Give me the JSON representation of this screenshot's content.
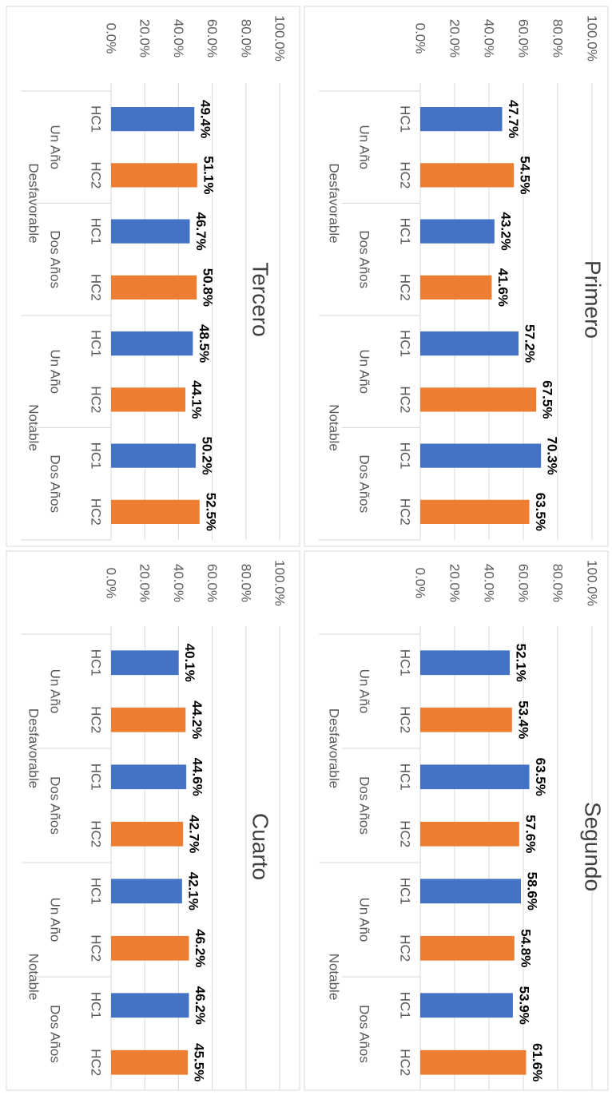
{
  "colors": {
    "hc1": "#4472c4",
    "hc2": "#ed7d31"
  },
  "y_ticks": [
    "0.0%",
    "20.0%",
    "40.0%",
    "60.0%",
    "80.0%",
    "100.0%"
  ],
  "chart_data": [
    {
      "type": "bar",
      "title": "Primero",
      "orientation": "rotated-90-clockwise",
      "categories": [
        [
          "HC1",
          "Un Año",
          "Desfavorable"
        ],
        [
          "HC2",
          "Un Año",
          "Desfavorable"
        ],
        [
          "HC1",
          "Dos Años",
          "Desfavorable"
        ],
        [
          "HC2",
          "Dos Años",
          "Desfavorable"
        ],
        [
          "HC1",
          "Un Año",
          "Notable"
        ],
        [
          "HC2",
          "Un Año",
          "Notable"
        ],
        [
          "HC1",
          "Dos Años",
          "Notable"
        ],
        [
          "HC2",
          "Dos Años",
          "Notable"
        ]
      ],
      "values": [
        47.7,
        54.5,
        43.2,
        41.6,
        57.2,
        67.5,
        70.3,
        63.5
      ],
      "labels": [
        "47.7%",
        "54.5%",
        "43.2%",
        "41.6%",
        "57.2%",
        "67.5%",
        "70.3%",
        "63.5%"
      ],
      "ylim": [
        0,
        100
      ],
      "grid": true
    },
    {
      "type": "bar",
      "title": "Segundo",
      "orientation": "rotated-90-clockwise",
      "categories": [
        [
          "HC1",
          "Un Año",
          "Desfavorable"
        ],
        [
          "HC2",
          "Un Año",
          "Desfavorable"
        ],
        [
          "HC1",
          "Dos Años",
          "Desfavorable"
        ],
        [
          "HC2",
          "Dos Años",
          "Desfavorable"
        ],
        [
          "HC1",
          "Un Año",
          "Notable"
        ],
        [
          "HC2",
          "Un Año",
          "Notable"
        ],
        [
          "HC1",
          "Dos Años",
          "Notable"
        ],
        [
          "HC2",
          "Dos Años",
          "Notable"
        ]
      ],
      "values": [
        52.1,
        53.4,
        63.5,
        57.6,
        58.6,
        54.8,
        53.9,
        61.6
      ],
      "labels": [
        "52.1%",
        "53.4%",
        "63.5%",
        "57.6%",
        "58.6%",
        "54.8%",
        "53.9%",
        "61.6%"
      ],
      "ylim": [
        0,
        100
      ],
      "grid": true
    },
    {
      "type": "bar",
      "title": "Tercero",
      "orientation": "rotated-90-clockwise",
      "categories": [
        [
          "HC1",
          "Un Año",
          "Desfavorable"
        ],
        [
          "HC2",
          "Un Año",
          "Desfavorable"
        ],
        [
          "HC1",
          "Dos Años",
          "Desfavorable"
        ],
        [
          "HC2",
          "Dos Años",
          "Desfavorable"
        ],
        [
          "HC1",
          "Un Año",
          "Notable"
        ],
        [
          "HC2",
          "Un Año",
          "Notable"
        ],
        [
          "HC1",
          "Dos Años",
          "Notable"
        ],
        [
          "HC2",
          "Dos Años",
          "Notable"
        ]
      ],
      "values": [
        49.4,
        51.1,
        46.7,
        50.8,
        48.5,
        44.1,
        50.2,
        52.5
      ],
      "labels": [
        "49.4%",
        "51.1%",
        "46.7%",
        "50.8%",
        "48.5%",
        "44.1%",
        "50.2%",
        "52.5%"
      ],
      "ylim": [
        0,
        100
      ],
      "grid": true
    },
    {
      "type": "bar",
      "title": "Cuarto",
      "orientation": "rotated-90-clockwise",
      "categories": [
        [
          "HC1",
          "Un Año",
          "Desfavorable"
        ],
        [
          "HC2",
          "Un Año",
          "Desfavorable"
        ],
        [
          "HC1",
          "Dos Años",
          "Desfavorable"
        ],
        [
          "HC2",
          "Dos Años",
          "Desfavorable"
        ],
        [
          "HC1",
          "Un Año",
          "Notable"
        ],
        [
          "HC2",
          "Un Año",
          "Notable"
        ],
        [
          "HC1",
          "Dos Años",
          "Notable"
        ],
        [
          "HC2",
          "Dos Años",
          "Notable"
        ]
      ],
      "values": [
        40.1,
        44.2,
        44.6,
        42.7,
        42.1,
        46.2,
        46.2,
        45.5
      ],
      "labels": [
        "40.1%",
        "44.2%",
        "44.6%",
        "42.7%",
        "42.1%",
        "46.2%",
        "46.2%",
        "45.5%"
      ],
      "ylim": [
        0,
        100
      ],
      "grid": true
    }
  ]
}
